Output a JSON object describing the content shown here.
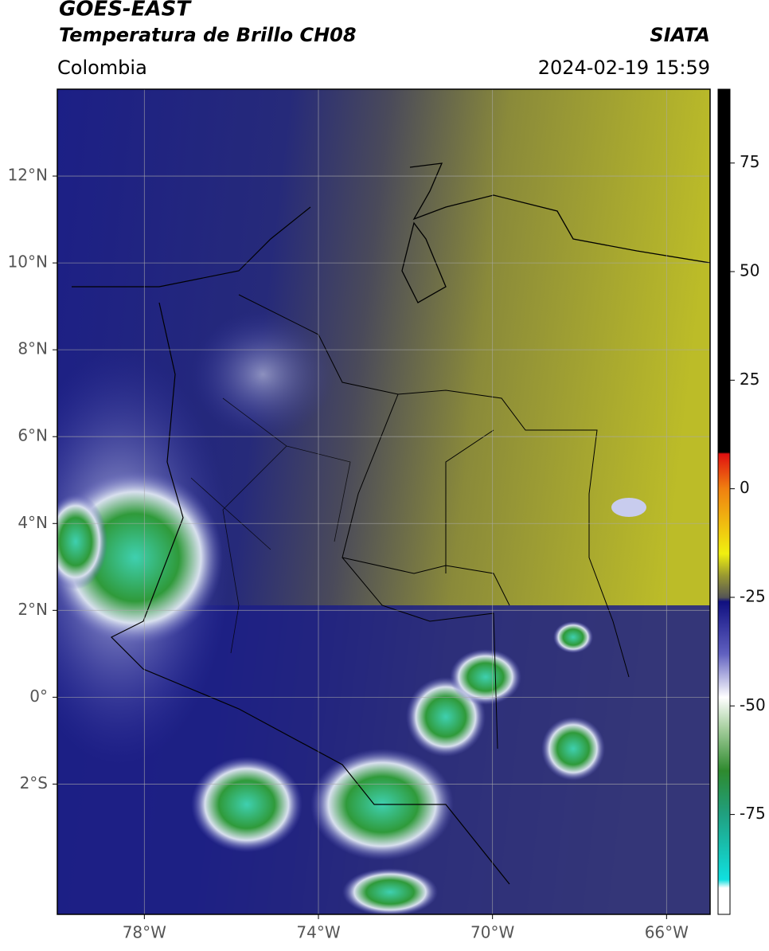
{
  "header": {
    "title_line1": "GOES-EAST",
    "title_line2": "Temperatura de Brillo CH08",
    "source": "SIATA",
    "region": "Colombia",
    "timestamp": "2024-02-19 15:59"
  },
  "map": {
    "xlim": [
      -80,
      -65
    ],
    "ylim": [
      -5,
      14
    ],
    "xticks": [
      {
        "value": -78,
        "label": "78°W"
      },
      {
        "value": -74,
        "label": "74°W"
      },
      {
        "value": -70,
        "label": "70°W"
      },
      {
        "value": -66,
        "label": "66°W"
      }
    ],
    "yticks": [
      {
        "value": 12,
        "label": "12°N"
      },
      {
        "value": 10,
        "label": "10°N"
      },
      {
        "value": 8,
        "label": "8°N"
      },
      {
        "value": 6,
        "label": "6°N"
      },
      {
        "value": 4,
        "label": "4°N"
      },
      {
        "value": 2,
        "label": "2°N"
      },
      {
        "value": 0,
        "label": "0°"
      },
      {
        "value": -2,
        "label": "2°S"
      }
    ],
    "grid": true
  },
  "colorbar": {
    "lim": [
      -98,
      92
    ],
    "ticks": [
      75,
      50,
      25,
      0,
      -25,
      -50,
      -75
    ]
  }
}
